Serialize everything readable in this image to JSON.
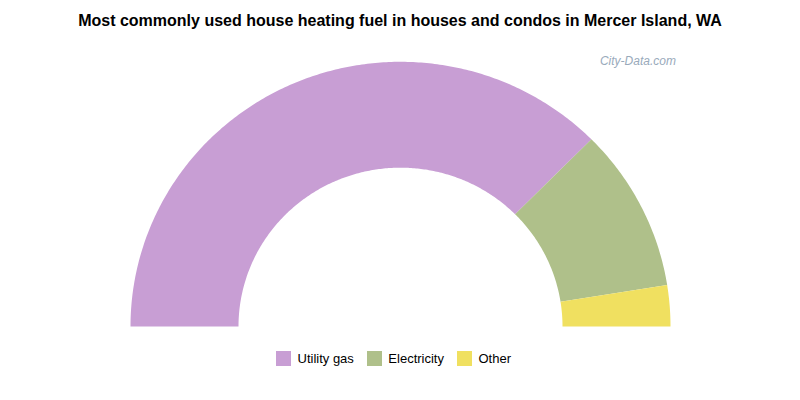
{
  "chart_data": {
    "type": "donut",
    "title": "Most commonly used house heating fuel in houses and condos in Mercer Island, WA",
    "categories": [
      "Utility gas",
      "Electricity",
      "Other"
    ],
    "values": [
      75.0,
      20.0,
      5.0
    ],
    "colors": [
      "#c89ed4",
      "#afc08a",
      "#f0e060"
    ],
    "annotation": "City-Data.com",
    "legend": "bottom"
  }
}
